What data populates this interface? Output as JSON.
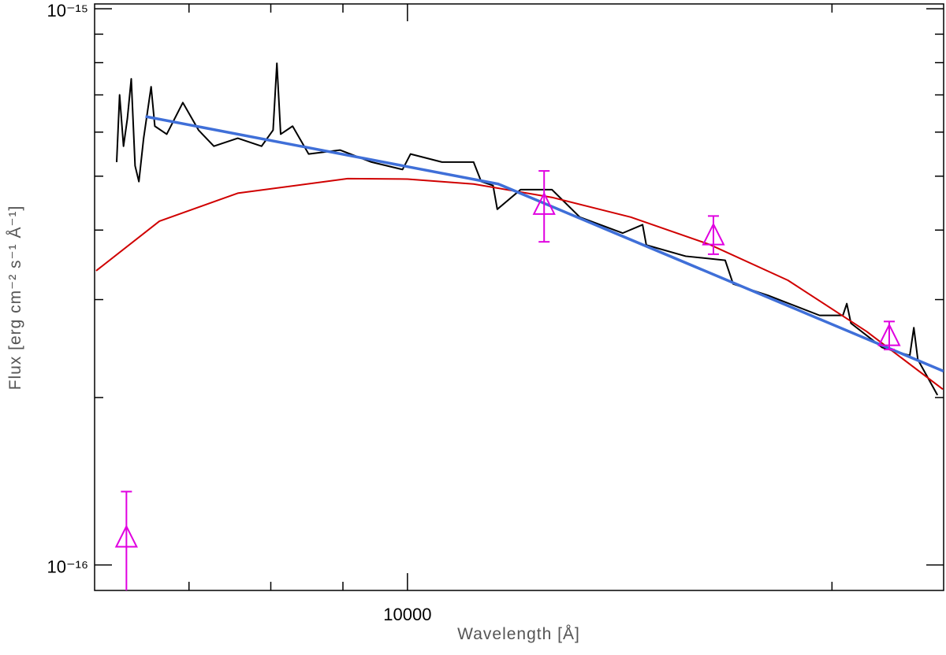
{
  "chart_data": {
    "type": "line",
    "x_label": "Wavelength [Å]",
    "y_label": "Flux [erg cm⁻² s⁻¹ Å⁻¹]",
    "log_x": true,
    "log_y": true,
    "xlim": [
      6000,
      24000
    ],
    "ylim": [
      9e-17,
      1.02e-15
    ],
    "xticks": [
      10000
    ],
    "xminor_ticks": [
      7000,
      8000,
      9000,
      20000
    ],
    "yticks": [
      {
        "value": 1e-16,
        "label": "10⁻¹⁶"
      },
      {
        "value": 1e-15,
        "label": "10⁻¹⁵"
      }
    ],
    "yminor_ticks": [
      2e-16,
      3e-16,
      4e-16,
      5e-16,
      6e-16,
      7e-16,
      8e-16,
      9e-16
    ],
    "series": [
      {
        "type": "line",
        "color": "#000000",
        "width": 2,
        "x": [
          6220,
          6250,
          6290,
          6330,
          6370,
          6410,
          6450,
          6500,
          6580,
          6620,
          6750,
          6930,
          7110,
          7290,
          7580,
          7880,
          8030,
          8080,
          8130,
          8290,
          8510,
          8960,
          9430,
          9920,
          10050,
          10580,
          11140,
          11280,
          11500,
          11580,
          12030,
          12660,
          13250,
          14210,
          14680,
          14770,
          15750,
          16800,
          17020,
          18030,
          19600,
          20360,
          20490,
          20630,
          21710,
          22710,
          22860,
          23010,
          23760
        ],
        "values": [
          5.3e-16,
          7e-16,
          5.66e-16,
          6.35e-16,
          7.48e-16,
          5.22e-16,
          4.89e-16,
          5.85e-16,
          7.24e-16,
          6.15e-16,
          5.95e-16,
          6.78e-16,
          6.05e-16,
          5.66e-16,
          5.85e-16,
          5.66e-16,
          6.05e-16,
          7.98e-16,
          5.95e-16,
          6.15e-16,
          5.48e-16,
          5.57e-16,
          5.3e-16,
          5.14e-16,
          5.48e-16,
          5.3e-16,
          5.3e-16,
          4.89e-16,
          4.81e-16,
          4.36e-16,
          4.73e-16,
          4.73e-16,
          4.22e-16,
          3.95e-16,
          4.09e-16,
          3.76e-16,
          3.59e-16,
          3.53e-16,
          3.2e-16,
          3.05e-16,
          2.81e-16,
          2.81e-16,
          2.95e-16,
          2.72e-16,
          2.46e-16,
          2.38e-16,
          2.67e-16,
          2.34e-16,
          2.02e-16
        ]
      },
      {
        "type": "line",
        "color": "#d00000",
        "width": 2,
        "x": [
          6015,
          6670,
          7580,
          9070,
          10000,
          11140,
          12660,
          14400,
          16370,
          18610,
          21160,
          23970
        ],
        "values": [
          3.38e-16,
          4.15e-16,
          4.66e-16,
          4.95e-16,
          4.94e-16,
          4.84e-16,
          4.58e-16,
          4.22e-16,
          3.77e-16,
          3.25e-16,
          2.63e-16,
          2.07e-16
        ]
      },
      {
        "type": "line",
        "color": "#3f6fd8",
        "width": 3.5,
        "x": [
          6520,
          11600,
          24000
        ],
        "values": [
          6.4e-16,
          4.84e-16,
          2.23e-16
        ]
      },
      {
        "type": "scatter",
        "color": "#e000e0",
        "marker": "triangle",
        "x": [
          6320,
          12500,
          16480,
          21960
        ],
        "values": [
          1.125e-16,
          4.46e-16,
          3.93e-16,
          2.59e-16
        ],
        "errors": [
          2.3e-17,
          6.5e-17,
          3.1e-17,
          1.5e-17
        ]
      }
    ]
  }
}
